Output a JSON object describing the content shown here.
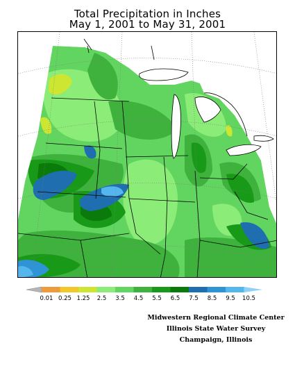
{
  "title": {
    "line1": "Total Precipitation in Inches",
    "line2": "May 1, 2001 to May 31, 2001"
  },
  "legend": {
    "bins": [
      {
        "label": "0.01",
        "color": "#ef9a3c"
      },
      {
        "label": "0.25",
        "color": "#f4c62a"
      },
      {
        "label": "1.25",
        "color": "#cde632"
      },
      {
        "label": "2.5",
        "color": "#8cec78"
      },
      {
        "label": "3.5",
        "color": "#62d460"
      },
      {
        "label": "4.5",
        "color": "#3fb23e"
      },
      {
        "label": "5.5",
        "color": "#189a18"
      },
      {
        "label": "6.5",
        "color": "#0a7a0a"
      },
      {
        "label": "7.5",
        "color": "#1f6fb0"
      },
      {
        "label": "8.5",
        "color": "#2f94d6"
      },
      {
        "label": "9.5",
        "color": "#55b6ee"
      },
      {
        "label": "10.5",
        "color": "#8fd0f8"
      }
    ],
    "below_color": "#b5b5b5"
  },
  "credits": {
    "line1": "Midwestern Regional Climate Center",
    "line2": "Illinois State Water Survey",
    "line3": "Champaign, Illinois"
  },
  "colors": {
    "water": "#ffffff",
    "boundary": "#000000",
    "graticule": "#7a7a7a"
  }
}
